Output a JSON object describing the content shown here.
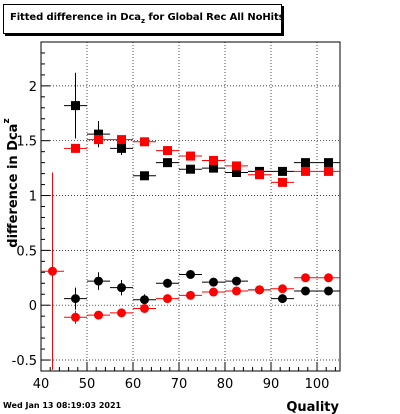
{
  "chart_data": {
    "type": "scatter",
    "title": "Fitted difference in Dca",
    "title_subscript": "z",
    "title_suffix": " for Global Rec All NoHits",
    "xlabel": "Quality",
    "ylabel": "difference in Dca",
    "ylabel_subscript": "z",
    "xlim": [
      40,
      105
    ],
    "ylim": [
      -0.6,
      2.4
    ],
    "x_ticks": [
      40,
      50,
      60,
      70,
      80,
      90,
      100
    ],
    "y_ticks": [
      -0.5,
      0,
      0.5,
      1,
      1.5,
      2
    ],
    "grid": true,
    "bin_halfwidth": 2.5,
    "series": [
      {
        "marker": "square",
        "color": "#000000",
        "points": [
          {
            "x": 47.5,
            "y": 1.82,
            "err": 0.3
          },
          {
            "x": 52.5,
            "y": 1.56,
            "err": 0.12
          },
          {
            "x": 57.5,
            "y": 1.43,
            "err": 0.06
          },
          {
            "x": 62.5,
            "y": 1.18,
            "err": 0.03
          },
          {
            "x": 67.5,
            "y": 1.3,
            "err": 0.03
          },
          {
            "x": 72.5,
            "y": 1.24,
            "err": 0.02
          },
          {
            "x": 77.5,
            "y": 1.25,
            "err": 0.02
          },
          {
            "x": 82.5,
            "y": 1.21,
            "err": 0.02
          },
          {
            "x": 87.5,
            "y": 1.22,
            "err": 0.02
          },
          {
            "x": 92.5,
            "y": 1.22,
            "err": 0.02
          },
          {
            "x": 97.5,
            "y": 1.3,
            "err": 0.02
          },
          {
            "x": 102.5,
            "y": 1.3,
            "err": 0.02
          }
        ]
      },
      {
        "marker": "square",
        "color": "#ff0000",
        "points": [
          {
            "x": 47.5,
            "y": 1.43,
            "err": 0.02
          },
          {
            "x": 52.5,
            "y": 1.51,
            "err": 0.02
          },
          {
            "x": 57.5,
            "y": 1.51,
            "err": 0.02
          },
          {
            "x": 62.5,
            "y": 1.49,
            "err": 0.02
          },
          {
            "x": 67.5,
            "y": 1.41,
            "err": 0.02
          },
          {
            "x": 72.5,
            "y": 1.36,
            "err": 0.02
          },
          {
            "x": 77.5,
            "y": 1.32,
            "err": 0.02
          },
          {
            "x": 82.5,
            "y": 1.27,
            "err": 0.02
          },
          {
            "x": 87.5,
            "y": 1.19,
            "err": 0.02
          },
          {
            "x": 92.5,
            "y": 1.12,
            "err": 0.02
          },
          {
            "x": 97.5,
            "y": 1.22,
            "err": 0.02
          },
          {
            "x": 102.5,
            "y": 1.22,
            "err": 0.02
          }
        ]
      },
      {
        "marker": "circle",
        "color": "#000000",
        "points": [
          {
            "x": 47.5,
            "y": 0.06,
            "err": 0.1
          },
          {
            "x": 52.5,
            "y": 0.22,
            "err": 0.08
          },
          {
            "x": 57.5,
            "y": 0.16,
            "err": 0.07
          },
          {
            "x": 62.5,
            "y": 0.05,
            "err": 0.05
          },
          {
            "x": 67.5,
            "y": 0.2,
            "err": 0.04
          },
          {
            "x": 72.5,
            "y": 0.28,
            "err": 0.03
          },
          {
            "x": 77.5,
            "y": 0.21,
            "err": 0.03
          },
          {
            "x": 82.5,
            "y": 0.22,
            "err": 0.03
          },
          {
            "x": 87.5,
            "y": 0.14,
            "err": 0.02
          },
          {
            "x": 92.5,
            "y": 0.06,
            "err": 0.02
          },
          {
            "x": 97.5,
            "y": 0.13,
            "err": 0.02
          },
          {
            "x": 102.5,
            "y": 0.13,
            "err": 0.02
          }
        ]
      },
      {
        "marker": "circle",
        "color": "#ff0000",
        "points": [
          {
            "x": 42.5,
            "y": 0.31,
            "err": 0.9
          },
          {
            "x": 47.5,
            "y": -0.11,
            "err": 0.06
          },
          {
            "x": 52.5,
            "y": -0.09,
            "err": 0.02
          },
          {
            "x": 57.5,
            "y": -0.07,
            "err": 0.02
          },
          {
            "x": 62.5,
            "y": -0.03,
            "err": 0.02
          },
          {
            "x": 67.5,
            "y": 0.06,
            "err": 0.02
          },
          {
            "x": 72.5,
            "y": 0.09,
            "err": 0.02
          },
          {
            "x": 77.5,
            "y": 0.12,
            "err": 0.02
          },
          {
            "x": 82.5,
            "y": 0.13,
            "err": 0.02
          },
          {
            "x": 87.5,
            "y": 0.14,
            "err": 0.02
          },
          {
            "x": 92.5,
            "y": 0.15,
            "err": 0.02
          },
          {
            "x": 97.5,
            "y": 0.25,
            "err": 0.02
          },
          {
            "x": 102.5,
            "y": 0.25,
            "err": 0.02
          }
        ]
      }
    ]
  },
  "footer": {
    "timestamp": "Wed Jan 13 08:19:03 2021"
  }
}
